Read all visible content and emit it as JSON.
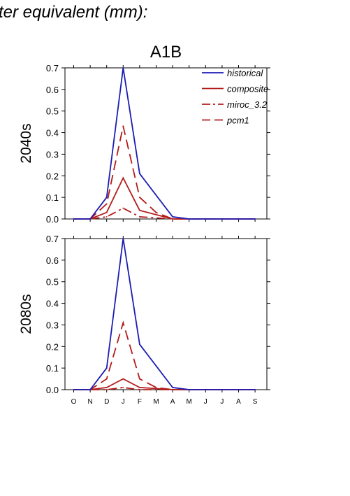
{
  "header": {
    "text": "ter equivalent (mm):"
  },
  "colors": {
    "historical": "#1c1cb4",
    "projection": "#b41c1c",
    "axis": "#000000"
  },
  "chart_data": {
    "type": "line",
    "title": "A1B",
    "categories": [
      "O",
      "N",
      "D",
      "J",
      "F",
      "M",
      "A",
      "M",
      "J",
      "J",
      "A",
      "S"
    ],
    "ylim": [
      0,
      0.7
    ],
    "yticks": [
      "0.0",
      "0.1",
      "0.2",
      "0.3",
      "0.4",
      "0.5",
      "0.6",
      "0.7"
    ],
    "legend": {
      "placement": "top-right",
      "entries": [
        {
          "name": "historical",
          "style": "solid",
          "color": "#1c1cb4"
        },
        {
          "name": "composite",
          "style": "solid",
          "color": "#b41c1c"
        },
        {
          "name": "miroc_3.2",
          "style": "dashdot",
          "color": "#b41c1c"
        },
        {
          "name": "pcm1",
          "style": "dashed",
          "color": "#b41c1c"
        }
      ]
    },
    "panels": [
      {
        "label": "2040s",
        "series": [
          {
            "name": "historical",
            "values": [
              0,
              0,
              0.1,
              0.7,
              0.21,
              null,
              0.01,
              0,
              0,
              0,
              0,
              0
            ]
          },
          {
            "name": "composite",
            "values": [
              0,
              0,
              0.03,
              0.19,
              0.04,
              null,
              0,
              0,
              0,
              0,
              0,
              0
            ]
          },
          {
            "name": "miroc_3.2",
            "values": [
              0,
              0,
              0.01,
              0.05,
              0.01,
              null,
              0,
              0,
              0,
              0,
              0,
              0
            ]
          },
          {
            "name": "pcm1",
            "values": [
              0,
              0,
              0.07,
              0.43,
              0.1,
              0.03,
              0,
              0,
              0,
              0,
              0,
              0
            ]
          }
        ]
      },
      {
        "label": "2080s",
        "series": [
          {
            "name": "historical",
            "values": [
              0,
              0,
              0.1,
              0.7,
              0.21,
              null,
              0.01,
              0,
              0,
              0,
              0,
              0
            ]
          },
          {
            "name": "composite",
            "values": [
              0,
              0,
              0.01,
              0.05,
              0.01,
              null,
              0,
              0,
              0,
              0,
              0,
              0
            ]
          },
          {
            "name": "miroc_3.2",
            "values": [
              0,
              0,
              0,
              0.01,
              0,
              null,
              0,
              0,
              0,
              0,
              0,
              0
            ]
          },
          {
            "name": "pcm1",
            "values": [
              0,
              0,
              0.05,
              0.31,
              0.05,
              0.01,
              0,
              0,
              0,
              0,
              0,
              0
            ]
          }
        ]
      }
    ]
  }
}
